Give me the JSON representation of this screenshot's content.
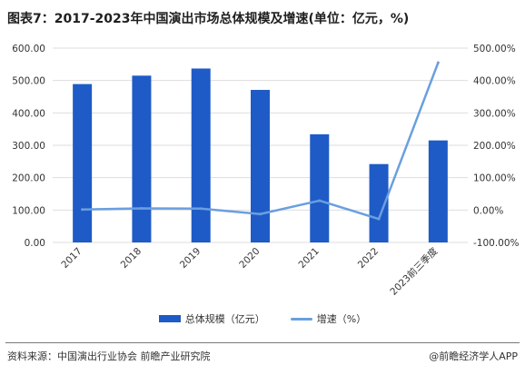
{
  "title": "图表7：2017-2023年中国演出市场总体规模及增速(单位：亿元，%)",
  "colors": {
    "bar": "#1e5bc6",
    "line": "#6a9fe0",
    "grid": "#dedede",
    "text": "#333333"
  },
  "legend": {
    "bar_label": "总体规模（亿元）",
    "line_label": "增速（%）"
  },
  "source": "资料来源：中国演出行业协会 前瞻产业研究院",
  "brand": "@前瞻经济学人APP",
  "chart_data": {
    "type": "bar",
    "categories": [
      "2017",
      "2018",
      "2019",
      "2020",
      "2021",
      "2022",
      "2023前三季度"
    ],
    "series": [
      {
        "name": "总体规模（亿元）",
        "type": "bar",
        "axis": "left",
        "values": [
          489,
          515,
          537,
          471,
          334,
          242,
          315
        ]
      },
      {
        "name": "增速（%）",
        "type": "line",
        "axis": "right",
        "values": [
          1.8,
          5.3,
          4.3,
          -12.3,
          29.1,
          -27.5,
          455
        ]
      }
    ],
    "y_left": {
      "min": 0,
      "max": 600,
      "step": 100,
      "ticks": [
        "0.00",
        "100.00",
        "200.00",
        "300.00",
        "400.00",
        "500.00",
        "600.00"
      ]
    },
    "y_right": {
      "min": -100,
      "max": 500,
      "step": 100,
      "ticks": [
        "-100.00%",
        "0.00%",
        "100.00%",
        "200.00%",
        "300.00%",
        "400.00%",
        "500.00%"
      ]
    },
    "grid": true,
    "legend_position": "bottom"
  }
}
